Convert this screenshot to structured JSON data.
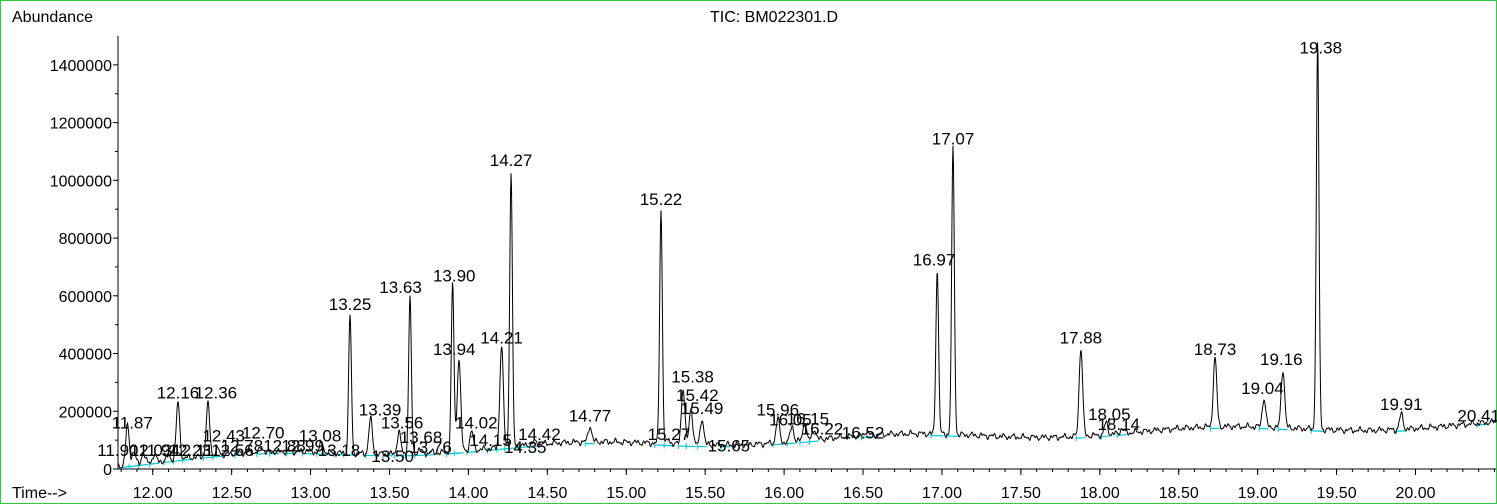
{
  "chart_data": {
    "type": "line",
    "title": "TIC: BM022301.D",
    "ylabel": "Abundance",
    "xlabel": "Time-->",
    "xlim": [
      11.78,
      20.51
    ],
    "ylim": [
      0,
      1500000
    ],
    "x_ticks": [
      "12.00",
      "12.50",
      "13.00",
      "13.50",
      "14.00",
      "14.50",
      "15.00",
      "15.50",
      "16.00",
      "16.50",
      "17.00",
      "17.50",
      "18.00",
      "18.50",
      "19.00",
      "19.50",
      "20.00"
    ],
    "y_ticks": [
      "0",
      "200000",
      "400000",
      "600000",
      "800000",
      "1000000",
      "1200000",
      "1400000"
    ],
    "grid": false,
    "colors": {
      "trace": "#000000",
      "baseline": "#00c8d2",
      "frame": "#2ecc40"
    },
    "peaks": [
      {
        "label": "11.87",
        "x": 11.84,
        "y": 150000
      },
      {
        "label": "11.90",
        "x": 11.88,
        "y": 60000
      },
      {
        "label": "11.94",
        "x": 11.94,
        "y": 55000
      },
      {
        "label": "12.03",
        "x": 12.01,
        "y": 50000
      },
      {
        "label": "12.11",
        "x": 12.1,
        "y": 45000
      },
      {
        "label": "12.16",
        "x": 12.16,
        "y": 230000
      },
      {
        "label": "12.23",
        "x": 12.22,
        "y": 40000
      },
      {
        "label": "12.36",
        "x": 12.35,
        "y": 225000
      },
      {
        "label": "12.43",
        "x": 12.41,
        "y": 70000
      },
      {
        "label": "12.56",
        "x": 12.55,
        "y": 55000
      },
      {
        "label": "12.70",
        "x": 12.69,
        "y": 75000
      },
      {
        "label": "12.78",
        "x": 12.77,
        "y": 55000
      },
      {
        "label": "12.88",
        "x": 12.88,
        "y": 60000
      },
      {
        "label": "12.99",
        "x": 12.98,
        "y": 65000
      },
      {
        "label": "13.08",
        "x": 13.07,
        "y": 90000
      },
      {
        "label": "13.18",
        "x": 13.18,
        "y": 50000
      },
      {
        "label": "13.25",
        "x": 13.25,
        "y": 535000
      },
      {
        "label": "13.39",
        "x": 13.38,
        "y": 175000
      },
      {
        "label": "13.50",
        "x": 13.49,
        "y": 40000
      },
      {
        "label": "13.56",
        "x": 13.56,
        "y": 130000
      },
      {
        "label": "13.63",
        "x": 13.63,
        "y": 595000
      },
      {
        "label": "13.68",
        "x": 13.69,
        "y": 70000
      },
      {
        "label": "13.76",
        "x": 13.76,
        "y": 60000
      },
      {
        "label": "13.90",
        "x": 13.9,
        "y": 640000
      },
      {
        "label": "13.94",
        "x": 13.94,
        "y": 385000
      },
      {
        "label": "14.02",
        "x": 14.02,
        "y": 130000
      },
      {
        "label": "14.15",
        "x": 14.15,
        "y": 65000
      },
      {
        "label": "14.21",
        "x": 14.21,
        "y": 425000
      },
      {
        "label": "14.27",
        "x": 14.27,
        "y": 1025000
      },
      {
        "label": "14.35",
        "x": 14.35,
        "y": 60000
      },
      {
        "label": "14.42",
        "x": 14.42,
        "y": 95000
      },
      {
        "label": "14.77",
        "x": 14.77,
        "y": 150000
      },
      {
        "label": "15.22",
        "x": 15.22,
        "y": 900000
      },
      {
        "label": "15.27",
        "x": 15.27,
        "y": 100000
      },
      {
        "label": "15.38",
        "x": 15.36,
        "y": 280000
      },
      {
        "label": "15.42",
        "x": 15.41,
        "y": 210000
      },
      {
        "label": "15.49",
        "x": 15.48,
        "y": 175000
      },
      {
        "label": "15.65",
        "x": 15.63,
        "y": 70000
      },
      {
        "label": "15.96",
        "x": 15.96,
        "y": 175000
      },
      {
        "label": "16.05",
        "x": 16.05,
        "y": 150000
      },
      {
        "label": "16.15",
        "x": 16.13,
        "y": 160000
      },
      {
        "label": "16.22",
        "x": 16.19,
        "y": 140000
      },
      {
        "label": "16.52",
        "x": 16.52,
        "y": 130000
      },
      {
        "label": "16.97",
        "x": 16.97,
        "y": 695000
      },
      {
        "label": "17.07",
        "x": 17.07,
        "y": 1110000
      },
      {
        "label": "17.88",
        "x": 17.88,
        "y": 420000
      },
      {
        "label": "18.05",
        "x": 18.04,
        "y": 160000
      },
      {
        "label": "18.14",
        "x": 18.14,
        "y": 140000
      },
      {
        "label": "18.73",
        "x": 18.73,
        "y": 385000
      },
      {
        "label": "19.04",
        "x": 19.04,
        "y": 245000
      },
      {
        "label": "19.16",
        "x": 19.16,
        "y": 345000
      },
      {
        "label": "19.38",
        "x": 19.38,
        "y": 1475000
      },
      {
        "label": "19.91",
        "x": 19.91,
        "y": 190000
      },
      {
        "label": "20.41",
        "x": 20.42,
        "y": 150000
      }
    ],
    "peak_labels": [
      {
        "text": "11.87",
        "x": 11.87,
        "y": 140000
      },
      {
        "text": "11.9011.94",
        "x": 11.91,
        "y": 45000
      },
      {
        "text": "12.0312.11",
        "x": 12.12,
        "y": 45000
      },
      {
        "text": "12.16",
        "x": 12.16,
        "y": 245000
      },
      {
        "text": "12.36",
        "x": 12.4,
        "y": 245000
      },
      {
        "text": "12.2312.56",
        "x": 12.37,
        "y": 45000
      },
      {
        "text": "12.43",
        "x": 12.45,
        "y": 95000
      },
      {
        "text": "12.70",
        "x": 12.7,
        "y": 105000
      },
      {
        "text": "12.7812.88",
        "x": 12.7,
        "y": 60000
      },
      {
        "text": "12.99",
        "x": 12.95,
        "y": 60000
      },
      {
        "text": "13.08",
        "x": 13.06,
        "y": 95000
      },
      {
        "text": "13.18",
        "x": 13.18,
        "y": 45000
      },
      {
        "text": "13.25",
        "x": 13.25,
        "y": 550000
      },
      {
        "text": "13.39",
        "x": 13.44,
        "y": 185000
      },
      {
        "text": "13.50",
        "x": 13.52,
        "y": 25000
      },
      {
        "text": "13.56",
        "x": 13.58,
        "y": 140000
      },
      {
        "text": "13.63",
        "x": 13.57,
        "y": 610000
      },
      {
        "text": "13.68",
        "x": 13.7,
        "y": 90000
      },
      {
        "text": "13.76",
        "x": 13.76,
        "y": 55000
      },
      {
        "text": "13.90",
        "x": 13.91,
        "y": 650000
      },
      {
        "text": "13.94",
        "x": 13.91,
        "y": 395000
      },
      {
        "text": "14.02",
        "x": 14.05,
        "y": 140000
      },
      {
        "text": "14.15",
        "x": 14.14,
        "y": 80000
      },
      {
        "text": "14.21",
        "x": 14.21,
        "y": 435000
      },
      {
        "text": "14.27",
        "x": 14.27,
        "y": 1050000
      },
      {
        "text": "14.35",
        "x": 14.36,
        "y": 55000
      },
      {
        "text": "14.42",
        "x": 14.45,
        "y": 100000
      },
      {
        "text": "14.77",
        "x": 14.77,
        "y": 165000
      },
      {
        "text": "15.22",
        "x": 15.22,
        "y": 915000
      },
      {
        "text": "15.27",
        "x": 15.27,
        "y": 100000
      },
      {
        "text": "15.38",
        "x": 15.42,
        "y": 300000
      },
      {
        "text": "15.42",
        "x": 15.45,
        "y": 235000
      },
      {
        "text": "15.49",
        "x": 15.48,
        "y": 190000
      },
      {
        "text": "15.65",
        "x": 15.65,
        "y": 60000
      },
      {
        "text": "15.96",
        "x": 15.96,
        "y": 185000
      },
      {
        "text": "16.05",
        "x": 16.04,
        "y": 150000
      },
      {
        "text": "16.15",
        "x": 16.15,
        "y": 155000
      },
      {
        "text": "16.22",
        "x": 16.24,
        "y": 120000
      },
      {
        "text": "16.52",
        "x": 16.5,
        "y": 105000
      },
      {
        "text": "16.97",
        "x": 16.95,
        "y": 705000
      },
      {
        "text": "17.07",
        "x": 17.07,
        "y": 1125000
      },
      {
        "text": "17.88",
        "x": 17.88,
        "y": 435000
      },
      {
        "text": "18.05",
        "x": 18.06,
        "y": 170000
      },
      {
        "text": "18.14",
        "x": 18.12,
        "y": 135000
      },
      {
        "text": "18.73",
        "x": 18.73,
        "y": 395000
      },
      {
        "text": "19.04",
        "x": 19.03,
        "y": 260000
      },
      {
        "text": "19.16",
        "x": 19.15,
        "y": 360000
      },
      {
        "text": "19.38",
        "x": 19.4,
        "y": 1440000
      },
      {
        "text": "19.91",
        "x": 19.91,
        "y": 205000
      },
      {
        "text": "20.41",
        "x": 20.4,
        "y": 165000
      }
    ]
  }
}
